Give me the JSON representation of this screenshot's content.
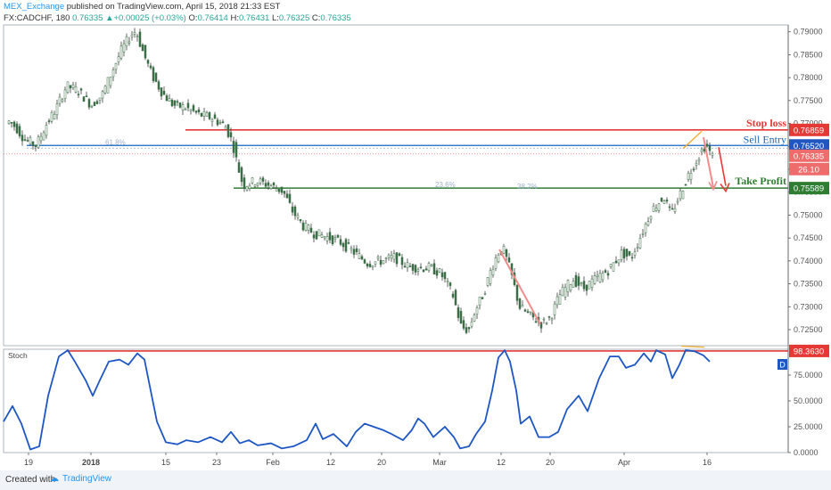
{
  "header": {
    "author": "MEX_Exchange",
    "published_text": " published on TradingView.com, April 15, 2018 21:33 EST",
    "symbol": "FX:CADCHF, 180",
    "last": "0.76335",
    "change": "+0.00025 (+0.03%)",
    "o_label": "O:",
    "o_value": "0.76414",
    "h_label": "H:",
    "h_value": "0.76431",
    "l_label": "L:",
    "l_value": "0.76325",
    "c_label": "C:",
    "c_value": "0.76335"
  },
  "footer": {
    "created_text": "Created with",
    "brand_text": "TradingView"
  },
  "colors": {
    "up": "#26a69a",
    "down": "#ef5350",
    "candle_body": "#3a6f46",
    "wick": "#222222",
    "stop_line": "#e53935",
    "entry_line": "#1565c0",
    "tp_line": "#2e7d32",
    "stoch_line": "#1e56c4",
    "stoch_ref": "#e53935",
    "pattern": "#f28b8b",
    "trend": "#f5a623"
  },
  "chart_data": [
    {
      "type": "candlestick",
      "symbol": "FX:CADCHF",
      "interval": "180",
      "ylim": [
        0.7215,
        0.7915
      ],
      "y_ticks": [
        "0.79000",
        "0.78500",
        "0.78000",
        "0.77500",
        "0.77000",
        "0.76500",
        "0.76000",
        "0.75500",
        "0.75000",
        "0.74500",
        "0.74000",
        "0.73500",
        "0.73000",
        "0.72500"
      ],
      "x_ticks": [
        "19",
        "2018",
        "15",
        "23",
        "Feb",
        "12",
        "20",
        "Mar",
        "12",
        "20",
        "Apr",
        "16"
      ],
      "path": [
        [
          0,
          0.7695
        ],
        [
          8,
          0.7705
        ],
        [
          16,
          0.769
        ],
        [
          25,
          0.7665
        ],
        [
          38,
          0.7652
        ],
        [
          50,
          0.77
        ],
        [
          60,
          0.773
        ],
        [
          72,
          0.7782
        ],
        [
          85,
          0.7772
        ],
        [
          100,
          0.774
        ],
        [
          112,
          0.7762
        ],
        [
          125,
          0.7822
        ],
        [
          135,
          0.7865
        ],
        [
          145,
          0.7895
        ],
        [
          150,
          0.7902
        ],
        [
          158,
          0.7855
        ],
        [
          168,
          0.7805
        ],
        [
          180,
          0.7765
        ],
        [
          192,
          0.774
        ],
        [
          205,
          0.7735
        ],
        [
          220,
          0.772
        ],
        [
          235,
          0.7712
        ],
        [
          250,
          0.7695
        ],
        [
          258,
          0.766
        ],
        [
          264,
          0.7608
        ],
        [
          270,
          0.7565
        ],
        [
          285,
          0.7575
        ],
        [
          300,
          0.7565
        ],
        [
          315,
          0.7552
        ],
        [
          325,
          0.751
        ],
        [
          338,
          0.7475
        ],
        [
          350,
          0.746
        ],
        [
          365,
          0.7452
        ],
        [
          380,
          0.744
        ],
        [
          395,
          0.7418
        ],
        [
          410,
          0.7395
        ],
        [
          425,
          0.74
        ],
        [
          440,
          0.7408
        ],
        [
          455,
          0.7388
        ],
        [
          468,
          0.7385
        ],
        [
          480,
          0.7385
        ],
        [
          492,
          0.7372
        ],
        [
          505,
          0.7328
        ],
        [
          515,
          0.7255
        ],
        [
          523,
          0.7248
        ],
        [
          530,
          0.729
        ],
        [
          540,
          0.733
        ],
        [
          548,
          0.738
        ],
        [
          556,
          0.7418
        ],
        [
          562,
          0.7425
        ],
        [
          570,
          0.7378
        ],
        [
          580,
          0.73
        ],
        [
          592,
          0.728
        ],
        [
          605,
          0.7262
        ],
        [
          615,
          0.7278
        ],
        [
          625,
          0.7325
        ],
        [
          640,
          0.736
        ],
        [
          652,
          0.734
        ],
        [
          665,
          0.736
        ],
        [
          680,
          0.738
        ],
        [
          695,
          0.7418
        ],
        [
          705,
          0.7405
        ],
        [
          715,
          0.745
        ],
        [
          728,
          0.751
        ],
        [
          742,
          0.754
        ],
        [
          750,
          0.75
        ],
        [
          760,
          0.7545
        ],
        [
          770,
          0.759
        ],
        [
          780,
          0.7625
        ],
        [
          789,
          0.7655
        ],
        [
          796,
          0.7628
        ]
      ],
      "annotations": [
        {
          "label": "Stop loss",
          "price": 0.76859,
          "tag": "0.76859"
        },
        {
          "label": "Sell Entry",
          "price": 0.7652,
          "tag": "0.76520"
        },
        {
          "label": "Take Profit",
          "price": 0.75589,
          "tag": "0.75589"
        }
      ],
      "last_price": {
        "price": 0.76335,
        "tag": "0.76335"
      },
      "countdown_tag": "26.10",
      "fib_labels": [
        "61.8%",
        "23.6%",
        "38.2%"
      ]
    },
    {
      "type": "line",
      "title": "Stoch",
      "ylim": [
        0,
        100
      ],
      "y_ticks": [
        "75.0000",
        "50.0000",
        "25.0000",
        "0.0000"
      ],
      "ref_level": 98.363,
      "ref_tag": "98.3630",
      "series_marker": "D",
      "path": [
        [
          0,
          30
        ],
        [
          10,
          45
        ],
        [
          20,
          28
        ],
        [
          30,
          3
        ],
        [
          40,
          6
        ],
        [
          50,
          55
        ],
        [
          62,
          93
        ],
        [
          72,
          99
        ],
        [
          80,
          88
        ],
        [
          92,
          70
        ],
        [
          100,
          55
        ],
        [
          108,
          70
        ],
        [
          118,
          88
        ],
        [
          130,
          90
        ],
        [
          140,
          85
        ],
        [
          150,
          96
        ],
        [
          158,
          90
        ],
        [
          165,
          60
        ],
        [
          172,
          30
        ],
        [
          182,
          10
        ],
        [
          195,
          8
        ],
        [
          205,
          12
        ],
        [
          218,
          10
        ],
        [
          232,
          15
        ],
        [
          245,
          10
        ],
        [
          255,
          20
        ],
        [
          265,
          9
        ],
        [
          275,
          12
        ],
        [
          285,
          7
        ],
        [
          300,
          9
        ],
        [
          312,
          4
        ],
        [
          325,
          6
        ],
        [
          340,
          12
        ],
        [
          350,
          28
        ],
        [
          358,
          13
        ],
        [
          370,
          18
        ],
        [
          385,
          6
        ],
        [
          395,
          20
        ],
        [
          405,
          28
        ],
        [
          415,
          25
        ],
        [
          425,
          22
        ],
        [
          435,
          18
        ],
        [
          448,
          12
        ],
        [
          458,
          22
        ],
        [
          465,
          33
        ],
        [
          472,
          28
        ],
        [
          482,
          15
        ],
        [
          495,
          25
        ],
        [
          505,
          15
        ],
        [
          512,
          4
        ],
        [
          522,
          6
        ],
        [
          530,
          18
        ],
        [
          540,
          30
        ],
        [
          548,
          60
        ],
        [
          555,
          92
        ],
        [
          562,
          99
        ],
        [
          568,
          88
        ],
        [
          575,
          60
        ],
        [
          580,
          28
        ],
        [
          590,
          35
        ],
        [
          600,
          15
        ],
        [
          612,
          15
        ],
        [
          622,
          20
        ],
        [
          632,
          42
        ],
        [
          645,
          55
        ],
        [
          655,
          40
        ],
        [
          668,
          72
        ],
        [
          680,
          93
        ],
        [
          690,
          93
        ],
        [
          698,
          82
        ],
        [
          708,
          85
        ],
        [
          718,
          96
        ],
        [
          726,
          88
        ],
        [
          732,
          99
        ],
        [
          742,
          95
        ],
        [
          750,
          72
        ],
        [
          758,
          85
        ],
        [
          765,
          99
        ],
        [
          775,
          98
        ],
        [
          785,
          94
        ],
        [
          792,
          88
        ]
      ]
    }
  ]
}
